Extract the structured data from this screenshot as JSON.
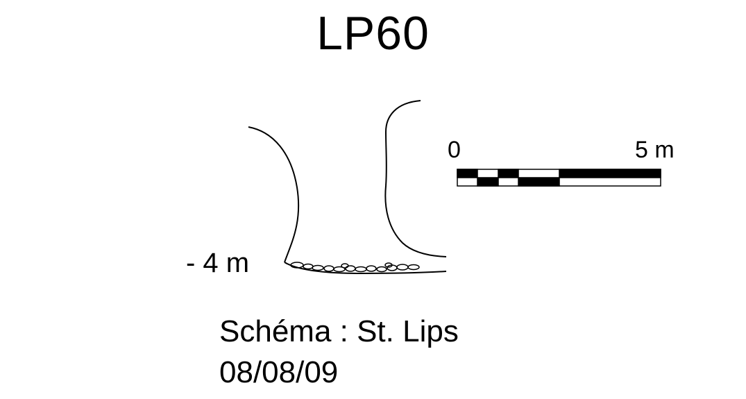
{
  "title": "LP60",
  "depth_label": "- 4 m",
  "scale_bar": {
    "start_label": "0",
    "end_label": "5 m"
  },
  "credits": {
    "author": "Schéma : St. Lips",
    "date": "08/08/09"
  },
  "colors": {
    "ink": "#000000",
    "background": "#ffffff"
  }
}
